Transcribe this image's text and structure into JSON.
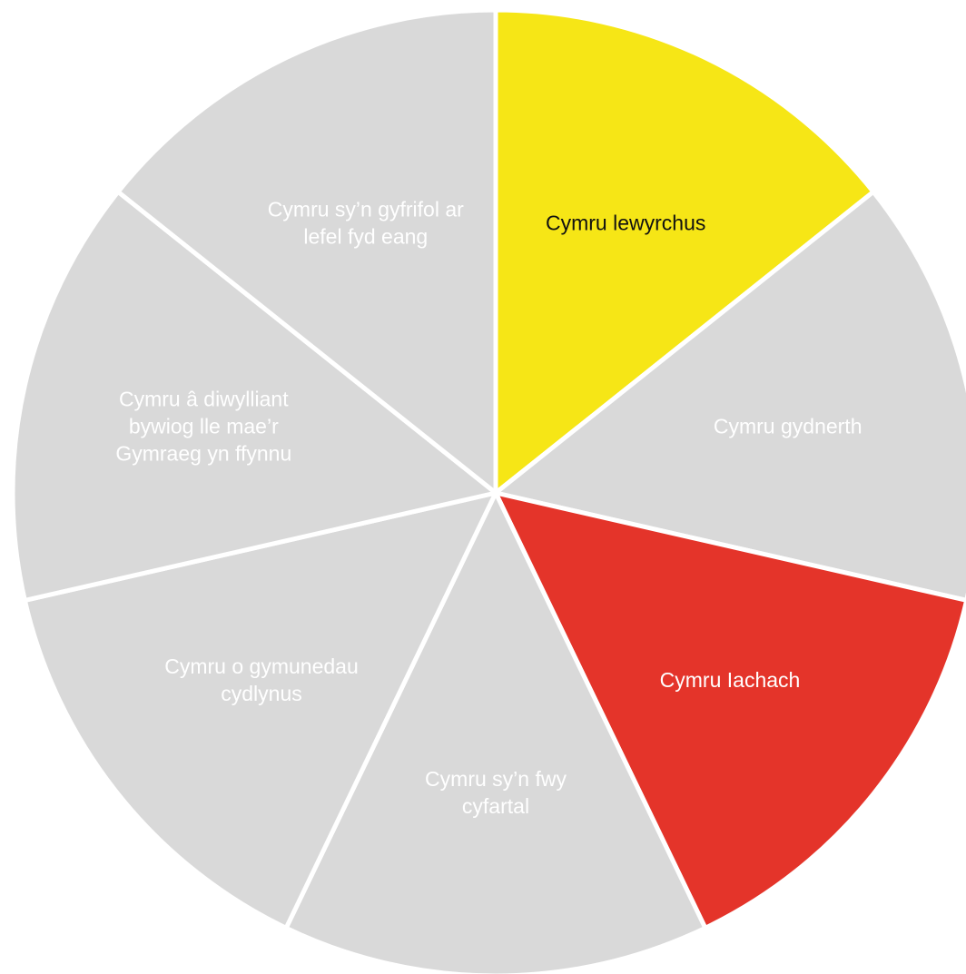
{
  "diagram": {
    "segments": [
      {
        "lines": [
          "Cymru lewyrchus"
        ],
        "fill": "#f6e616",
        "text_color": "#111111"
      },
      {
        "lines": [
          "Cymru gydnerth"
        ],
        "fill": "#d9d9d9",
        "text_color": "#ffffff"
      },
      {
        "lines": [
          "Cymru Iachach"
        ],
        "fill": "#e4342a",
        "text_color": "#ffffff"
      },
      {
        "lines": [
          "Cymru sy’n fwy",
          "cyfartal"
        ],
        "fill": "#d9d9d9",
        "text_color": "#ffffff"
      },
      {
        "lines": [
          "Cymru o gymunedau",
          "cydlynus"
        ],
        "fill": "#d9d9d9",
        "text_color": "#ffffff"
      },
      {
        "lines": [
          "Cymru â diwylliant",
          "bywiog lle mae’r",
          "Gymraeg yn ffynnu"
        ],
        "fill": "#d9d9d9",
        "text_color": "#ffffff"
      },
      {
        "lines": [
          "Cymru sy’n gyfrifol ar",
          "lefel fyd eang"
        ],
        "fill": "#d9d9d9",
        "text_color": "#ffffff"
      }
    ],
    "separator_color": "#ffffff"
  }
}
